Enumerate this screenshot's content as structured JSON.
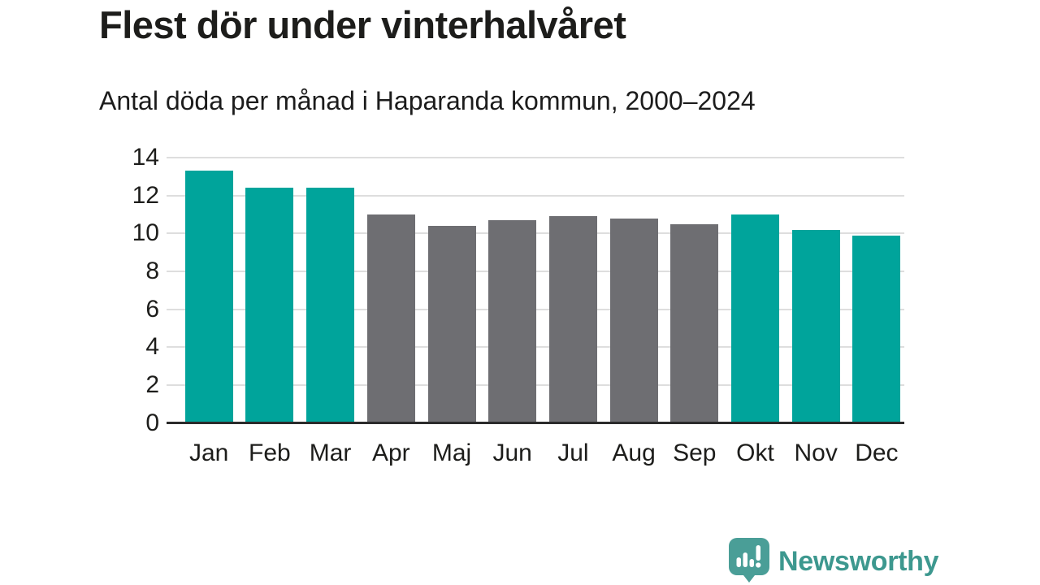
{
  "header": {
    "title": "Flest dör under vinterhalvåret",
    "subtitle": "Antal döda per månad i Haparanda kommun, 2000–2024"
  },
  "chart_data": {
    "type": "bar",
    "title": "Flest dör under vinterhalvåret",
    "subtitle": "Antal döda per månad i Haparanda kommun, 2000–2024",
    "categories": [
      "Jan",
      "Feb",
      "Mar",
      "Apr",
      "Maj",
      "Jun",
      "Jul",
      "Aug",
      "Sep",
      "Okt",
      "Nov",
      "Dec"
    ],
    "values": [
      13.3,
      12.4,
      12.4,
      11.0,
      10.4,
      10.7,
      10.9,
      10.8,
      10.5,
      11.0,
      10.2,
      9.9
    ],
    "highlighted_categories": [
      "Jan",
      "Feb",
      "Mar",
      "Okt",
      "Nov",
      "Dec"
    ],
    "bar_color_keys": [
      "highlight",
      "highlight",
      "highlight",
      "base",
      "base",
      "base",
      "base",
      "base",
      "base",
      "highlight",
      "highlight",
      "highlight"
    ],
    "xlabel": "",
    "ylabel": "",
    "ylim": [
      0,
      14
    ],
    "yticks": [
      0,
      2,
      4,
      6,
      8,
      10,
      12,
      14
    ],
    "grid": true,
    "legend_position": "none",
    "colors": {
      "highlight": "#00a49b",
      "base": "#6e6e72",
      "gridline": "#dedede",
      "axis_line": "#2b2b2b",
      "text": "#1d1d1b"
    }
  },
  "footer": {
    "brand": "Newsworthy",
    "brand_color": "#3d988f",
    "icon_color": "#4a9e97",
    "icon": "bar-chart-speech-bubble-icon"
  }
}
